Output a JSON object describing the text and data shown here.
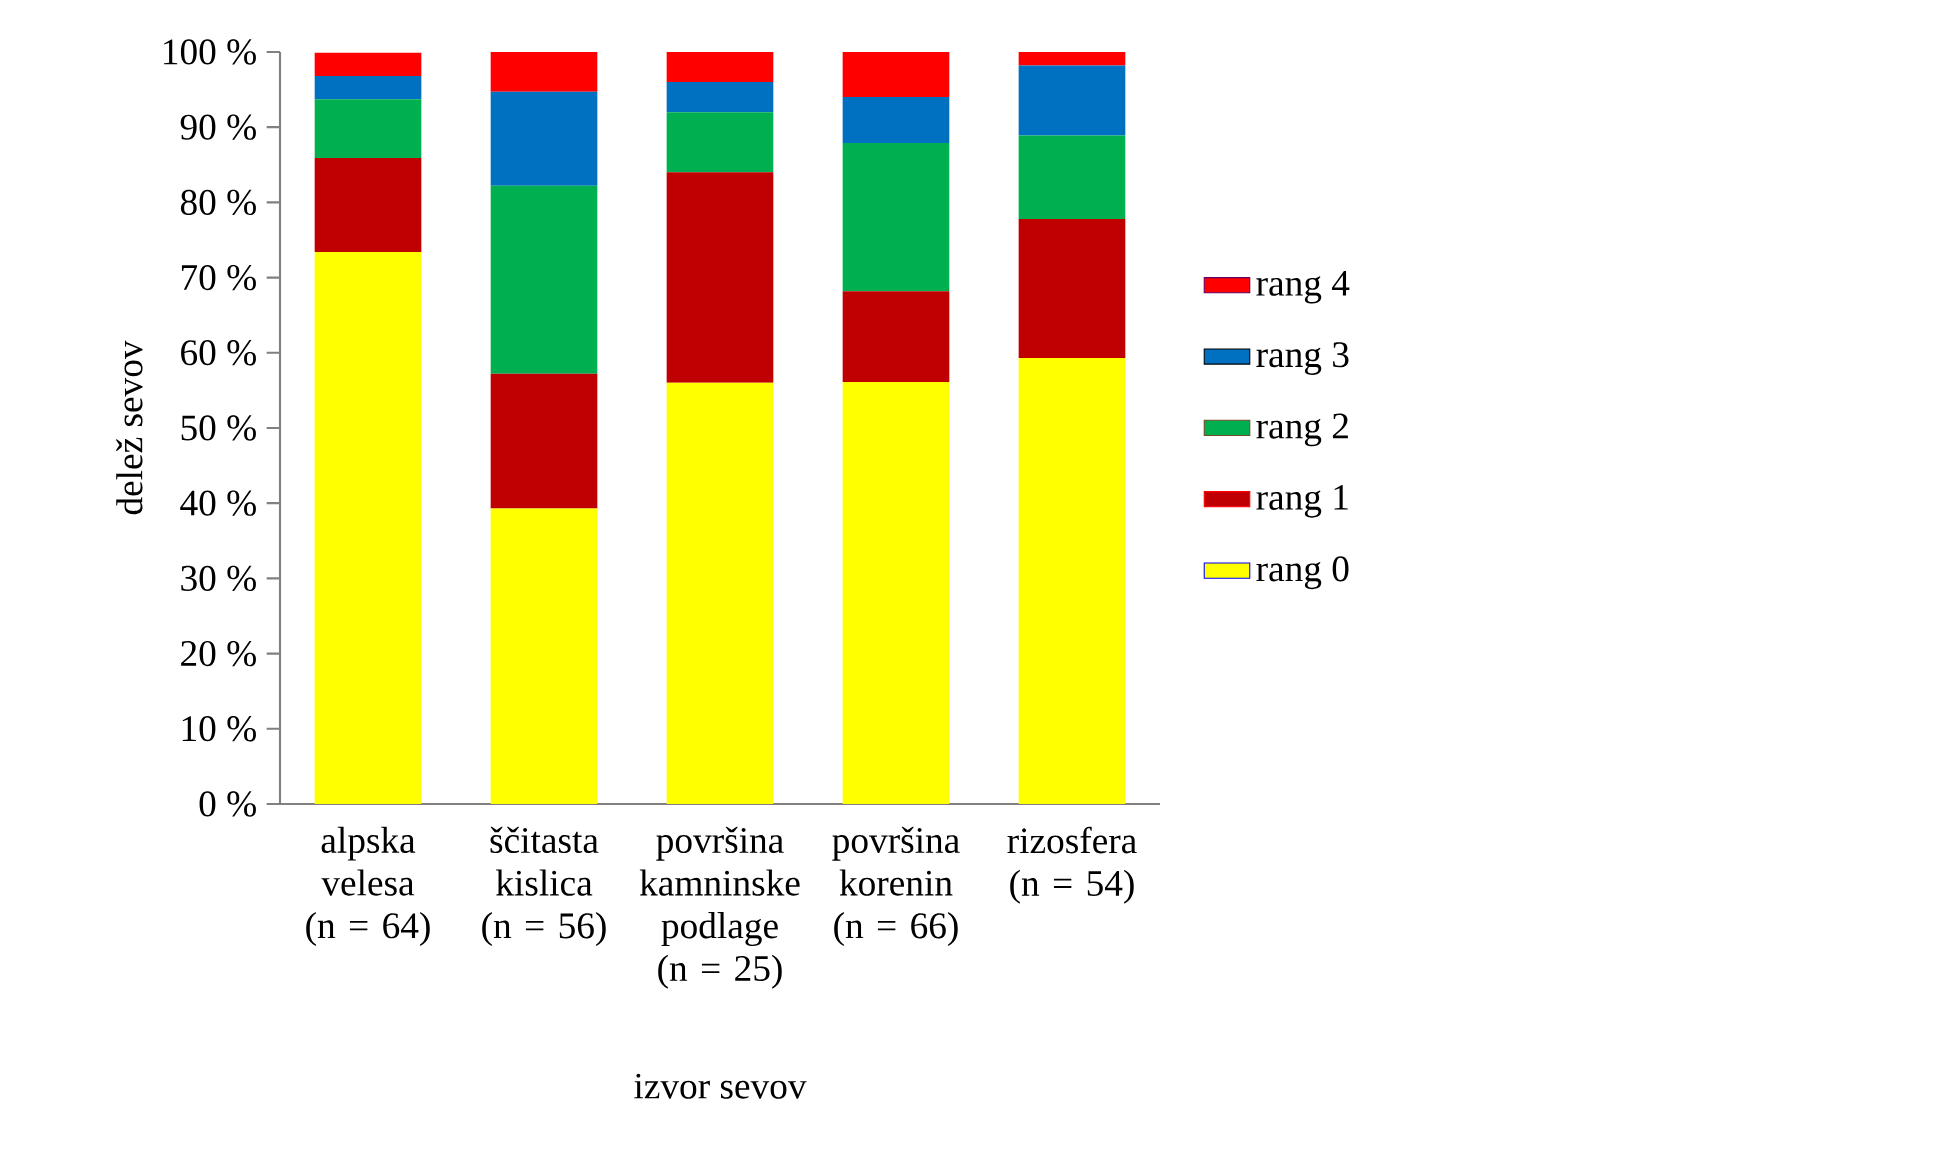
{
  "chart_data": {
    "type": "bar",
    "stacked": true,
    "xlabel": "izvor sevov",
    "ylabel": "delež sevov",
    "categories": [
      "alpska velesa (n = 64)",
      "ščitasta kislica (n = 56)",
      "površina kamninske podlage (n = 25)",
      "površina korenin (n = 66)",
      "rizosfera (n = 54)"
    ],
    "series": [
      {
        "name": "rang 0",
        "color": "#ffff00",
        "values": [
          73.4,
          39.3,
          56.0,
          56.1,
          59.3
        ]
      },
      {
        "name": "rang 1",
        "color": "#c00000",
        "values": [
          12.5,
          17.9,
          28.0,
          12.1,
          18.5
        ]
      },
      {
        "name": "rang 2",
        "color": "#00b050",
        "values": [
          7.8,
          25.0,
          8.0,
          19.7,
          11.1
        ]
      },
      {
        "name": "rang 3",
        "color": "#0070c0",
        "values": [
          3.1,
          12.5,
          4.0,
          6.1,
          9.3
        ]
      },
      {
        "name": "rang 4",
        "color": "#ff0000",
        "values": [
          3.1,
          5.4,
          4.0,
          6.1,
          1.9
        ]
      }
    ],
    "ylim": [
      0,
      100
    ],
    "yticks": [
      {
        "value": 0,
        "label": "0 %"
      },
      {
        "value": 10,
        "label": "10 %"
      },
      {
        "value": 20,
        "label": "20 %"
      },
      {
        "value": 30,
        "label": "30 %"
      },
      {
        "value": 40,
        "label": "40 %"
      },
      {
        "value": 50,
        "label": "50 %"
      },
      {
        "value": 60,
        "label": "60 %"
      },
      {
        "value": 70,
        "label": "70 %"
      },
      {
        "value": 80,
        "label": "80 %"
      },
      {
        "value": 90,
        "label": "90 %"
      },
      {
        "value": 100,
        "label": "100 %"
      }
    ],
    "legend": "right",
    "grid": false
  }
}
